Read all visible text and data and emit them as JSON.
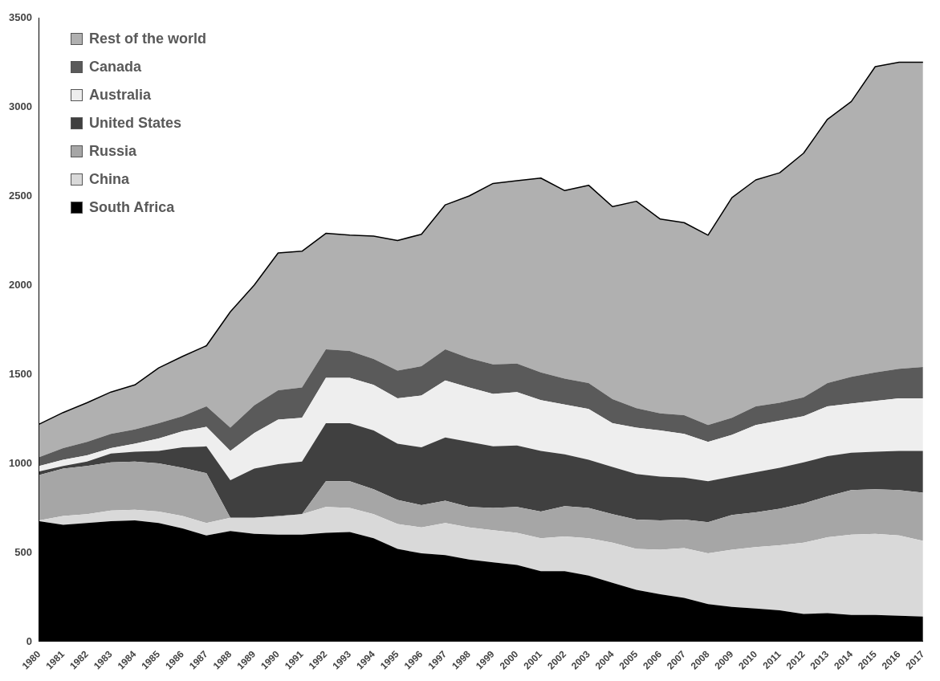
{
  "chart_data": {
    "type": "area",
    "stacked": true,
    "categories": [
      "1980",
      "1981",
      "1982",
      "1983",
      "1984",
      "1985",
      "1986",
      "1987",
      "1988",
      "1989",
      "1990",
      "1991",
      "1992",
      "1993",
      "1994",
      "1995",
      "1996",
      "1997",
      "1998",
      "1999",
      "2000",
      "2001",
      "2002",
      "2003",
      "2004",
      "2005",
      "2006",
      "2007",
      "2008",
      "2009",
      "2010",
      "2011",
      "2012",
      "2013",
      "2014",
      "2015",
      "2016",
      "2017"
    ],
    "ylim": [
      0,
      3500
    ],
    "yticks": [
      0,
      500,
      1000,
      1500,
      2000,
      2500,
      3000,
      3500
    ],
    "grid": false,
    "legend": "top left",
    "series": [
      {
        "name": "South Africa",
        "color": "#000000",
        "values": [
          675,
          655,
          665,
          675,
          680,
          665,
          635,
          595,
          620,
          605,
          600,
          600,
          610,
          615,
          580,
          520,
          495,
          485,
          460,
          445,
          430,
          395,
          395,
          370,
          330,
          290,
          265,
          245,
          210,
          195,
          185,
          175,
          155,
          160,
          150,
          150,
          145,
          140
        ]
      },
      {
        "name": "China",
        "color": "#d9d9d9",
        "values": [
          5,
          50,
          50,
          60,
          60,
          65,
          70,
          70,
          75,
          90,
          100,
          115,
          145,
          135,
          135,
          140,
          145,
          180,
          180,
          180,
          180,
          185,
          195,
          210,
          225,
          230,
          250,
          280,
          285,
          320,
          345,
          365,
          400,
          425,
          450,
          455,
          450,
          425
        ]
      },
      {
        "name": "Russia",
        "color": "#a6a6a6",
        "values": [
          255,
          265,
          270,
          270,
          270,
          270,
          270,
          280,
          0,
          0,
          5,
          0,
          145,
          150,
          140,
          135,
          125,
          125,
          115,
          125,
          145,
          150,
          170,
          170,
          160,
          165,
          165,
          160,
          175,
          195,
          195,
          205,
          220,
          230,
          250,
          250,
          255,
          270
        ]
      },
      {
        "name": "United States",
        "color": "#404040",
        "values": [
          20,
          15,
          25,
          50,
          55,
          70,
          115,
          150,
          210,
          275,
          290,
          295,
          325,
          325,
          330,
          315,
          325,
          355,
          365,
          345,
          345,
          340,
          290,
          270,
          265,
          255,
          245,
          235,
          230,
          215,
          225,
          230,
          230,
          225,
          210,
          210,
          220,
          235
        ]
      },
      {
        "name": "Australia",
        "color": "#eeeeee",
        "values": [
          30,
          35,
          35,
          30,
          45,
          70,
          90,
          110,
          165,
          200,
          250,
          245,
          255,
          255,
          255,
          255,
          290,
          320,
          305,
          295,
          300,
          285,
          280,
          285,
          245,
          260,
          260,
          245,
          220,
          235,
          265,
          265,
          260,
          280,
          275,
          285,
          295,
          295
        ]
      },
      {
        "name": "Canada",
        "color": "#5a5a5a",
        "values": [
          50,
          65,
          75,
          80,
          80,
          85,
          85,
          115,
          130,
          155,
          165,
          170,
          160,
          150,
          145,
          155,
          165,
          175,
          165,
          165,
          160,
          155,
          145,
          145,
          135,
          110,
          95,
          105,
          95,
          95,
          105,
          100,
          105,
          130,
          150,
          160,
          165,
          175
        ]
      },
      {
        "name": "Rest of the world",
        "color": "#b0b0b0",
        "values": [
          185,
          200,
          220,
          235,
          250,
          310,
          335,
          340,
          650,
          675,
          770,
          765,
          650,
          650,
          690,
          730,
          740,
          810,
          910,
          1015,
          1025,
          1090,
          1055,
          1110,
          1080,
          1160,
          1090,
          1080,
          1065,
          1235,
          1270,
          1290,
          1370,
          1480,
          1545,
          1715,
          1720,
          1710
        ]
      }
    ]
  }
}
